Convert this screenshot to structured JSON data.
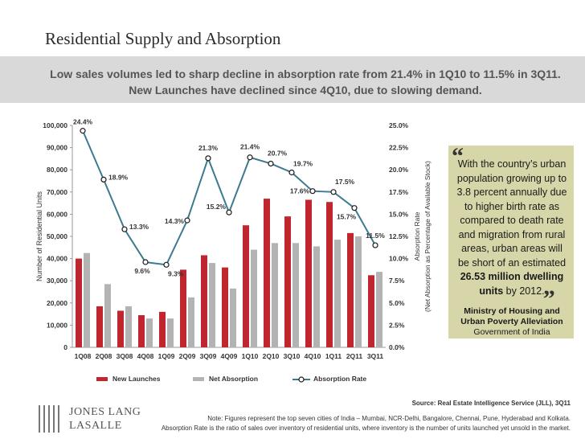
{
  "title": "Residential Supply and Absorption",
  "banner": "Low sales volumes led to sharp decline in absorption rate from 21.4% in 1Q10 to 11.5% in 3Q11. New Launches have declined since 4Q10, due to slowing demand.",
  "quote": {
    "text_before": "With the country’s urban population growing up to 3.8 percent annually due to higher birth rate as compared to death rate and migration from rural areas, urban areas will be short of an estimated ",
    "text_bold": "26.53 million dwelling units",
    "text_after": " by 2012.",
    "open_mark": "“",
    "close_mark": "„",
    "org": "Ministry of Housing and Urban Poverty Alleviation",
    "gov": "Government of India"
  },
  "source": "Source: Real Estate Intelligence Service (JLL), 3Q11",
  "note_line1": "Note: Figures represent the  top seven cities of India – Mumbai, NCR-Delhi, Bangalore, Chennai, Pune, Hyderabad and Kolkata.",
  "note_line2": "Absorption Rate is the ratio of sales over inventory of residential units, where inventory is the number of units launched yet unsold in the market.",
  "logo": {
    "line1": "JONES LANG",
    "line2": "LASALLE"
  },
  "colors": {
    "new_launches": "#c0262d",
    "net_absorption": "#b3b3b3",
    "line": "#3e7a8f",
    "quote_bg": "#d6d6a8"
  },
  "chart_data": {
    "type": "bar",
    "categories": [
      "1Q08",
      "2Q08",
      "3Q08",
      "4Q08",
      "1Q09",
      "2Q09",
      "3Q09",
      "4Q09",
      "1Q10",
      "2Q10",
      "3Q10",
      "4Q10",
      "1Q11",
      "2Q11",
      "3Q11"
    ],
    "series": [
      {
        "name": "New Launches",
        "type": "bar",
        "axis": "left",
        "values": [
          40000,
          18500,
          16500,
          14500,
          16000,
          35000,
          41500,
          36000,
          55000,
          67000,
          59000,
          66500,
          65500,
          51500,
          32500
        ]
      },
      {
        "name": "Net Absorption",
        "type": "bar",
        "axis": "left",
        "values": [
          42500,
          28500,
          18500,
          13000,
          13000,
          22500,
          38000,
          26500,
          44000,
          47000,
          47000,
          45500,
          48500,
          50000,
          34000
        ]
      },
      {
        "name": "Absorption Rate",
        "type": "line",
        "axis": "right",
        "values": [
          24.4,
          18.9,
          13.3,
          9.6,
          9.3,
          14.3,
          21.3,
          15.2,
          21.4,
          20.7,
          19.7,
          17.6,
          17.5,
          15.7,
          11.5
        ],
        "labels": [
          "24.4%",
          "18.9%",
          "13.3%",
          "9.6%",
          "9.3%",
          "14.3%",
          "21.3%",
          "15.2%",
          "21.4%",
          "20.7%",
          "19.7%",
          "17.6%",
          "17.5%",
          "15.7%",
          "11.5%"
        ]
      }
    ],
    "ylabel": "Number of Residential Units",
    "ylabel2_line1": "Absorption Rate",
    "ylabel2_line2": "(Net Absorption as Percentage of Available Stock)",
    "ylim": [
      0,
      100000
    ],
    "ylim2": [
      0,
      25
    ],
    "yticks": [
      "0",
      "10,000",
      "20,000",
      "30,000",
      "40,000",
      "50,000",
      "60,000",
      "70,000",
      "80,000",
      "90,000",
      "100,000"
    ],
    "yticks2": [
      "0.0%",
      "2.5%",
      "5.0%",
      "7.5%",
      "10.0%",
      "12.5%",
      "15.0%",
      "17.5%",
      "20.0%",
      "22.5%",
      "25.0%"
    ],
    "legend": [
      "New Launches",
      "Net Absorption",
      "Absorption Rate"
    ],
    "grid": false
  }
}
